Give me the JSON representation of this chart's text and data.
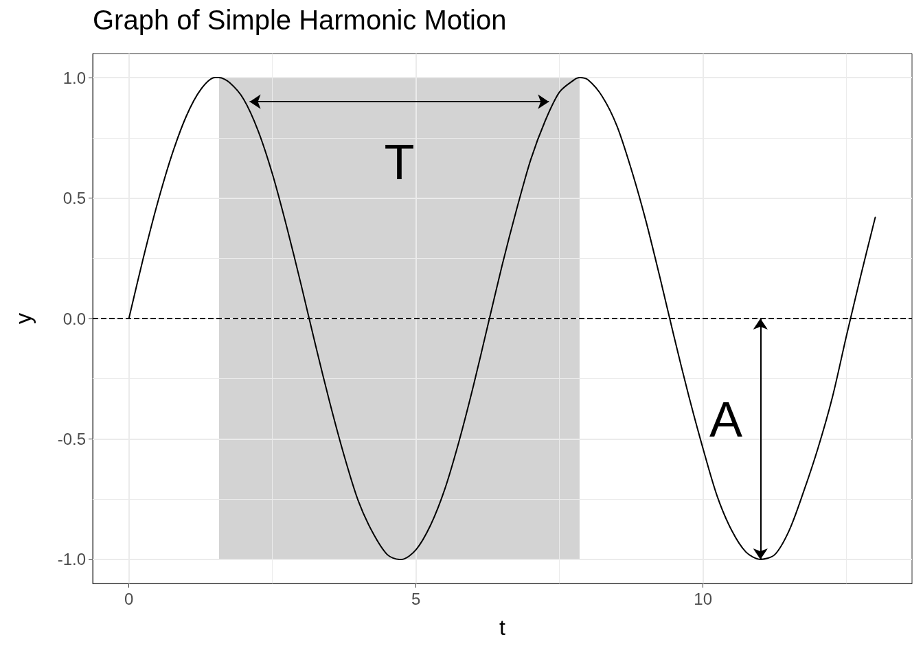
{
  "chart_data": {
    "type": "line",
    "title": "Graph of Simple Harmonic Motion",
    "xlabel": "t",
    "ylabel": "y",
    "x": [
      0,
      0.25,
      0.5,
      0.75,
      1,
      1.25,
      1.5,
      1.57,
      1.75,
      2,
      2.25,
      2.5,
      2.75,
      3,
      3.25,
      3.5,
      3.75,
      4,
      4.25,
      4.5,
      4.71,
      4.75,
      5,
      5.25,
      5.5,
      5.75,
      6,
      6.25,
      6.5,
      6.75,
      7,
      7.25,
      7.5,
      7.75,
      7.85,
      8,
      8.25,
      8.5,
      8.75,
      9,
      9.25,
      9.5,
      9.75,
      10,
      10.25,
      10.5,
      10.75,
      11,
      11.25,
      11.5,
      11.75,
      12,
      12.25,
      12.5,
      12.75,
      13
    ],
    "series": [
      {
        "color": "#000000",
        "values": [
          0,
          0.25,
          0.48,
          0.68,
          0.84,
          0.95,
          1.0,
          1.0,
          0.98,
          0.91,
          0.78,
          0.6,
          0.38,
          0.14,
          -0.11,
          -0.35,
          -0.57,
          -0.76,
          -0.89,
          -0.98,
          -1.0,
          -1.0,
          -0.96,
          -0.86,
          -0.71,
          -0.51,
          -0.28,
          -0.03,
          0.22,
          0.45,
          0.66,
          0.82,
          0.94,
          0.99,
          1.0,
          0.99,
          0.92,
          0.8,
          0.62,
          0.41,
          0.17,
          -0.08,
          -0.32,
          -0.54,
          -0.74,
          -0.88,
          -0.97,
          -1.0,
          -0.98,
          -0.88,
          -0.72,
          -0.54,
          -0.33,
          -0.07,
          0.18,
          0.42
        ]
      }
    ],
    "xlim": [
      -0.63,
      13.64
    ],
    "ylim": [
      -1.1,
      1.1
    ],
    "xticks": [
      0,
      {
        "value": 2.5,
        "label": null
      },
      5,
      {
        "value": 7.5,
        "label": null
      },
      10,
      {
        "value": 12.5,
        "label": null
      }
    ],
    "yticks": [
      {
        "value": -1,
        "label": "-1.0"
      },
      {
        "value": -0.75,
        "label": null
      },
      {
        "value": -0.5,
        "label": "-0.5"
      },
      {
        "value": -0.25,
        "label": null
      },
      {
        "value": 0,
        "label": "0.0"
      },
      {
        "value": 0.25,
        "label": null
      },
      {
        "value": 0.5,
        "label": "0.5"
      },
      {
        "value": 0.75,
        "label": null
      },
      {
        "value": 1,
        "label": "1.0"
      }
    ],
    "grid": true,
    "marker": "none",
    "line_style": "solid",
    "ref_lines": [
      {
        "axis": "y",
        "value": 0,
        "label": null,
        "color": "#000000",
        "line_style": "dashed"
      }
    ],
    "bands": [
      {
        "axis": "x",
        "from": 1.57,
        "to": 7.85,
        "label": null,
        "color": "#d3d3d3"
      }
    ],
    "annotations": [
      "T",
      "A"
    ]
  }
}
